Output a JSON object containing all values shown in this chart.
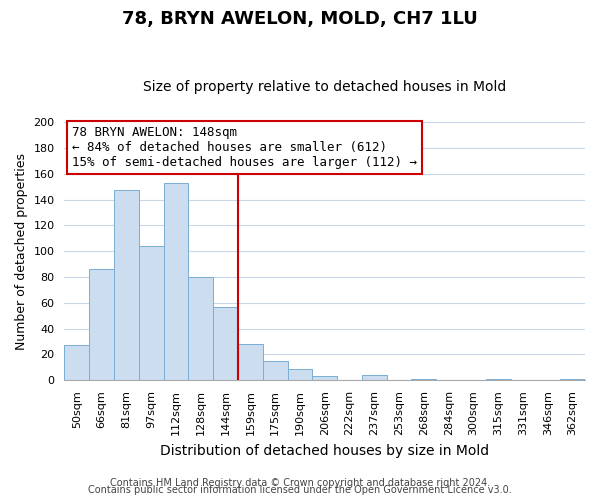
{
  "title": "78, BRYN AWELON, MOLD, CH7 1LU",
  "subtitle": "Size of property relative to detached houses in Mold",
  "xlabel": "Distribution of detached houses by size in Mold",
  "ylabel": "Number of detached properties",
  "bar_labels": [
    "50sqm",
    "66sqm",
    "81sqm",
    "97sqm",
    "112sqm",
    "128sqm",
    "144sqm",
    "159sqm",
    "175sqm",
    "190sqm",
    "206sqm",
    "222sqm",
    "237sqm",
    "253sqm",
    "268sqm",
    "284sqm",
    "300sqm",
    "315sqm",
    "331sqm",
    "346sqm",
    "362sqm"
  ],
  "bar_heights": [
    27,
    86,
    147,
    104,
    153,
    80,
    57,
    28,
    15,
    9,
    3,
    0,
    4,
    0,
    1,
    0,
    0,
    1,
    0,
    0,
    1
  ],
  "bar_color": "#ccddf0",
  "bar_edge_color": "#7aaed4",
  "vline_color": "#cc0000",
  "vline_x": 6.5,
  "box_text_line1": "78 BRYN AWELON: 148sqm",
  "box_text_line2": "← 84% of detached houses are smaller (612)",
  "box_text_line3": "15% of semi-detached houses are larger (112) →",
  "box_color": "#cc0000",
  "box_fill": "#ffffff",
  "ylim": [
    0,
    200
  ],
  "yticks": [
    0,
    20,
    40,
    60,
    80,
    100,
    120,
    140,
    160,
    180,
    200
  ],
  "footer_line1": "Contains HM Land Registry data © Crown copyright and database right 2024.",
  "footer_line2": "Contains public sector information licensed under the Open Government Licence v3.0.",
  "background_color": "#ffffff",
  "grid_color": "#c8d8e8",
  "title_fontsize": 13,
  "subtitle_fontsize": 10,
  "ylabel_fontsize": 9,
  "xlabel_fontsize": 10,
  "tick_fontsize": 8,
  "footer_fontsize": 7,
  "annot_fontsize": 9
}
